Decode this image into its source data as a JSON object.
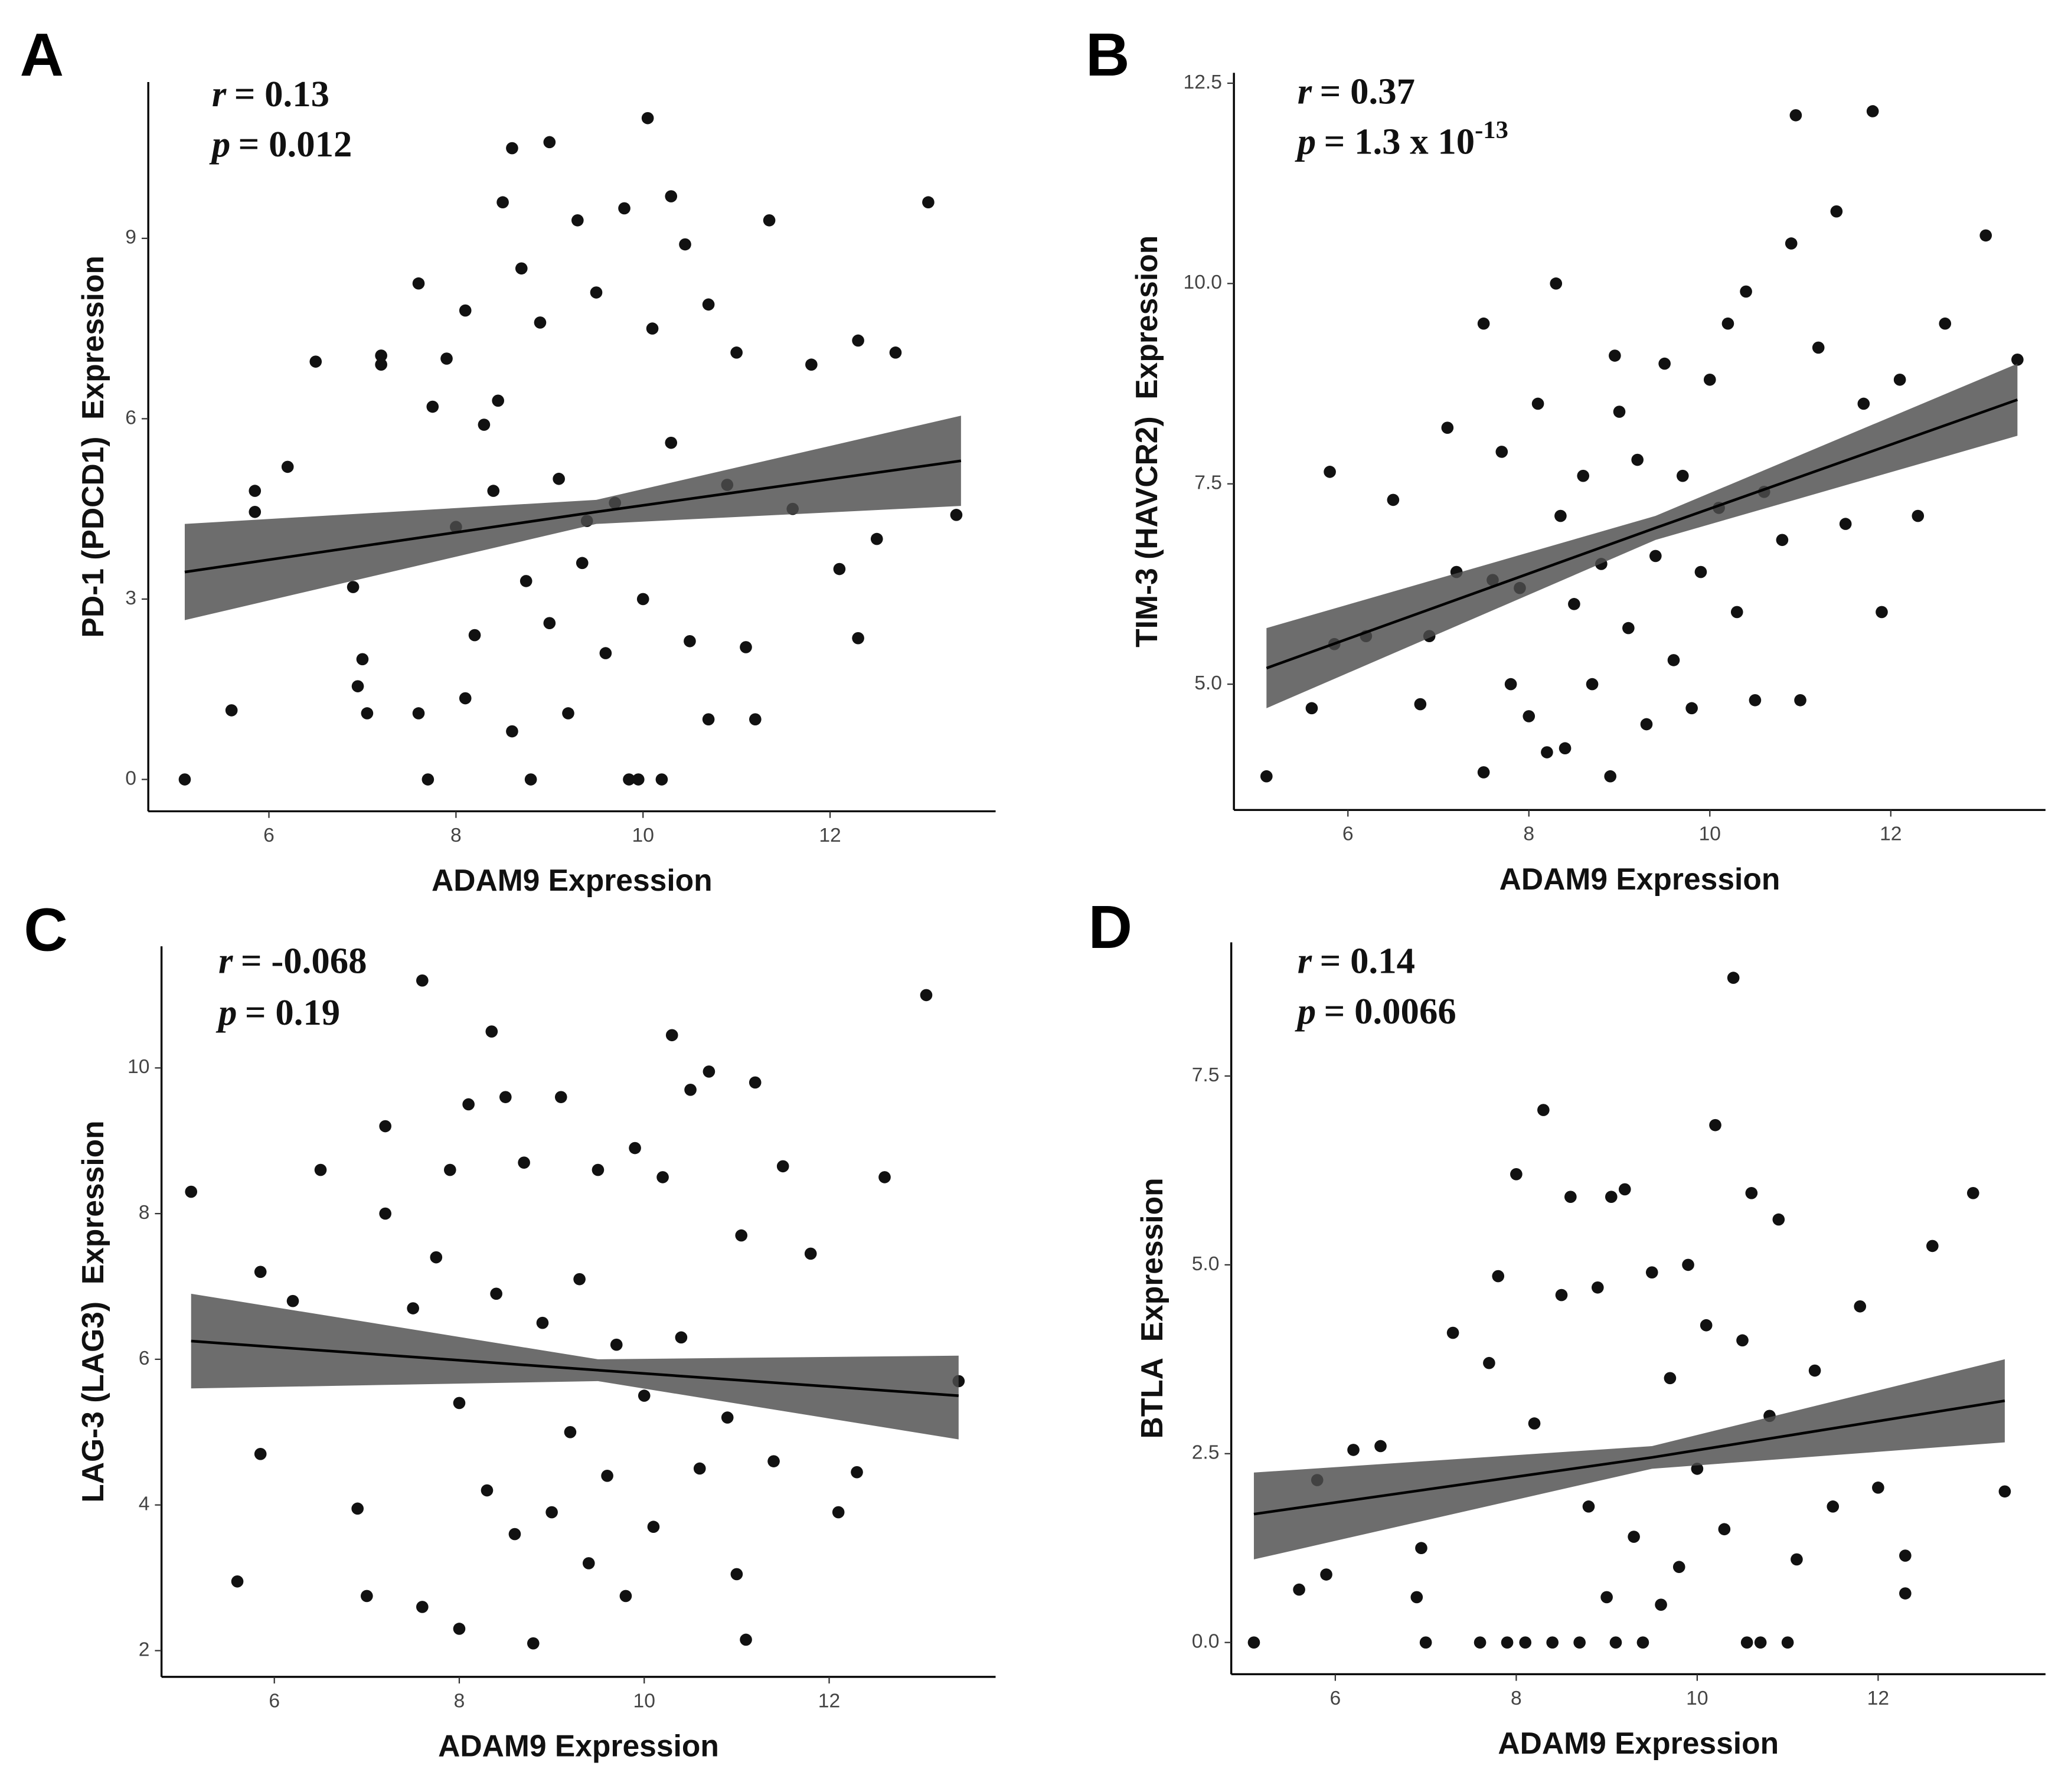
{
  "chart_data": [
    {
      "panel": "A",
      "type": "scatter",
      "color": "#111111",
      "xlabel": "ADAM9 Expression",
      "ylabel": "PD-1 (PDCD1)  Expression",
      "annotations": [
        {
          "symbol": "r",
          "text": "= 0.13"
        },
        {
          "symbol": "p",
          "text": "= 0.012"
        }
      ],
      "xlim": [
        4.71,
        13.77
      ],
      "ylim": [
        -0.53,
        11.6
      ],
      "xticks": [
        6,
        8,
        10,
        12
      ],
      "yticks": [
        0,
        3,
        6,
        9
      ],
      "x": [
        5.1,
        5.6,
        5.85,
        5.85,
        6.2,
        6.5,
        6.9,
        6.95,
        7.0,
        7.05,
        7.2,
        7.2,
        7.6,
        7.6,
        7.7,
        7.75,
        7.9,
        8.0,
        8.1,
        8.1,
        8.2,
        8.3,
        8.4,
        8.45,
        8.5,
        8.6,
        8.6,
        8.7,
        8.75,
        8.8,
        8.9,
        9.0,
        9.0,
        9.1,
        9.2,
        9.3,
        9.35,
        9.4,
        9.5,
        9.6,
        9.7,
        9.8,
        9.85,
        9.95,
        10.0,
        10.05,
        10.1,
        10.2,
        10.3,
        10.3,
        10.45,
        10.5,
        10.7,
        10.7,
        10.9,
        11.0,
        11.1,
        11.2,
        11.35,
        11.6,
        11.8,
        12.1,
        12.3,
        12.3,
        12.5,
        12.7,
        13.05,
        13.35
      ],
      "values": [
        0,
        1.15,
        4.8,
        4.45,
        5.2,
        6.95,
        3.2,
        1.55,
        2.0,
        1.1,
        7.05,
        6.9,
        8.25,
        1.1,
        0,
        6.2,
        7.0,
        4.2,
        1.35,
        7.8,
        2.4,
        5.9,
        4.8,
        6.3,
        9.6,
        10.5,
        0.8,
        8.5,
        3.3,
        0,
        7.6,
        2.6,
        10.6,
        5.0,
        1.1,
        9.3,
        3.6,
        4.3,
        8.1,
        2.1,
        4.6,
        9.5,
        0,
        0,
        3.0,
        11.0,
        7.5,
        0,
        9.7,
        5.6,
        8.9,
        2.3,
        7.9,
        1.0,
        4.9,
        7.1,
        2.2,
        1.0,
        9.3,
        4.5,
        6.9,
        3.5,
        7.3,
        2.35,
        4.0,
        7.1,
        9.6,
        4.4
      ],
      "fit": {
        "x": [
          5.1,
          9.5,
          13.4
        ],
        "y": [
          3.45,
          4.45,
          5.3
        ],
        "lower": [
          2.65,
          4.25,
          4.55
        ],
        "upper": [
          4.25,
          4.65,
          6.05
        ]
      }
    },
    {
      "panel": "B",
      "type": "scatter",
      "color": "#111111",
      "xlabel": "ADAM9 Expression",
      "ylabel": "TIM-3 (HAVCR2)  Expression",
      "annotations": [
        {
          "symbol": "r",
          "text": "= 0.37"
        },
        {
          "symbol": "p",
          "text": "= 1.3 x 10",
          "sup": "-13"
        }
      ],
      "xlim": [
        4.74,
        13.71
      ],
      "ylim": [
        3.43,
        12.63
      ],
      "xticks": [
        6,
        8,
        10,
        12
      ],
      "yticks": [
        {
          "value": 5,
          "label": "5.0"
        },
        {
          "value": 7.5,
          "label": "7.5"
        },
        {
          "value": 10,
          "label": "10.0"
        },
        {
          "value": 12.5,
          "label": "12.5"
        }
      ],
      "x": [
        5.1,
        5.6,
        5.8,
        5.85,
        6.2,
        6.5,
        6.8,
        6.9,
        7.1,
        7.2,
        7.5,
        7.5,
        7.6,
        7.7,
        7.8,
        7.9,
        8.0,
        8.1,
        8.2,
        8.3,
        8.35,
        8.4,
        8.5,
        8.6,
        8.7,
        8.8,
        8.9,
        8.95,
        9.0,
        9.1,
        9.2,
        9.3,
        9.4,
        9.5,
        9.6,
        9.7,
        9.8,
        9.9,
        10.0,
        10.1,
        10.2,
        10.3,
        10.4,
        10.5,
        10.6,
        10.8,
        10.9,
        10.95,
        11.0,
        11.2,
        11.4,
        11.5,
        11.7,
        11.8,
        11.9,
        12.1,
        12.3,
        12.6,
        13.05,
        13.4
      ],
      "values": [
        3.85,
        4.7,
        7.65,
        5.5,
        5.6,
        7.3,
        4.75,
        5.6,
        8.2,
        6.4,
        9.5,
        3.9,
        6.3,
        7.9,
        5.0,
        6.2,
        4.6,
        8.5,
        4.15,
        10.0,
        7.1,
        4.2,
        6.0,
        7.6,
        5.0,
        6.5,
        3.85,
        9.1,
        8.4,
        5.7,
        7.8,
        4.5,
        6.6,
        9.0,
        5.3,
        7.6,
        4.7,
        6.4,
        8.8,
        7.2,
        9.5,
        5.9,
        9.9,
        4.8,
        7.4,
        6.8,
        10.5,
        12.1,
        4.8,
        9.2,
        10.9,
        7.0,
        8.5,
        12.15,
        5.9,
        8.8,
        7.1,
        9.5,
        10.6,
        9.05
      ],
      "fit": {
        "x": [
          5.1,
          9.4,
          13.4
        ],
        "y": [
          5.2,
          6.95,
          8.55
        ],
        "lower": [
          4.7,
          6.8,
          8.1
        ],
        "upper": [
          5.7,
          7.1,
          9.0
        ]
      }
    },
    {
      "panel": "C",
      "type": "scatter",
      "color": "#111111",
      "xlabel": "ADAM9 Expression",
      "ylabel": "LAG-3 (LAG3)  Expression",
      "annotations": [
        {
          "symbol": "r",
          "text": "= -0.068"
        },
        {
          "symbol": "p",
          "text": "= 0.19"
        }
      ],
      "xlim": [
        4.78,
        13.8
      ],
      "ylim": [
        1.64,
        11.67
      ],
      "xticks": [
        6,
        8,
        10,
        12
      ],
      "yticks": [
        2,
        4,
        6,
        8,
        10
      ],
      "x": [
        5.1,
        5.6,
        5.85,
        5.85,
        6.2,
        6.5,
        6.9,
        7.0,
        7.2,
        7.2,
        7.5,
        7.6,
        7.6,
        7.75,
        7.9,
        8.0,
        8.0,
        8.1,
        8.3,
        8.35,
        8.4,
        8.5,
        8.6,
        8.7,
        8.8,
        8.9,
        9.0,
        9.1,
        9.2,
        9.3,
        9.4,
        9.5,
        9.6,
        9.7,
        9.8,
        9.9,
        10.0,
        10.1,
        10.2,
        10.3,
        10.4,
        10.5,
        10.6,
        10.7,
        10.9,
        11.0,
        11.05,
        11.1,
        11.2,
        11.4,
        11.5,
        11.8,
        12.1,
        12.3,
        12.6,
        13.05,
        13.4
      ],
      "values": [
        8.3,
        2.95,
        7.2,
        4.7,
        6.8,
        8.6,
        3.95,
        2.75,
        9.2,
        8.0,
        6.7,
        11.2,
        2.6,
        7.4,
        8.6,
        5.4,
        2.3,
        9.5,
        4.2,
        10.5,
        6.9,
        9.6,
        3.6,
        8.7,
        2.1,
        6.5,
        3.9,
        9.6,
        5.0,
        7.1,
        3.2,
        8.6,
        4.4,
        6.2,
        2.75,
        8.9,
        5.5,
        3.7,
        8.5,
        10.45,
        6.3,
        9.7,
        4.5,
        9.95,
        5.2,
        3.05,
        7.7,
        2.15,
        9.8,
        4.6,
        8.65,
        7.45,
        3.9,
        4.45,
        8.5,
        11.0,
        5.7
      ],
      "fit": {
        "x": [
          5.1,
          9.5,
          13.4
        ],
        "y": [
          6.25,
          5.85,
          5.5
        ],
        "lower": [
          5.6,
          5.7,
          4.9
        ],
        "upper": [
          6.9,
          6.0,
          6.05
        ]
      }
    },
    {
      "panel": "D",
      "type": "scatter",
      "color": "#111111",
      "xlabel": "ADAM9 Expression",
      "ylabel": "BTLA  Expression",
      "annotations": [
        {
          "symbol": "r",
          "text": "= 0.14"
        },
        {
          "symbol": "p",
          "text": "= 0.0066"
        }
      ],
      "xlim": [
        4.85,
        13.85
      ],
      "ylim": [
        -0.42,
        9.27
      ],
      "xticks": [
        6,
        8,
        10,
        12
      ],
      "yticks": [
        {
          "value": 0,
          "label": "0.0"
        },
        {
          "value": 2.5,
          "label": "2.5"
        },
        {
          "value": 5,
          "label": "5.0"
        },
        {
          "value": 7.5,
          "label": "7.5"
        }
      ],
      "x": [
        5.1,
        5.6,
        5.8,
        5.9,
        6.2,
        6.5,
        6.9,
        6.95,
        7.0,
        7.3,
        7.6,
        7.7,
        7.8,
        7.9,
        8.0,
        8.1,
        8.2,
        8.3,
        8.4,
        8.5,
        8.6,
        8.7,
        8.8,
        8.9,
        9.0,
        9.05,
        9.1,
        9.2,
        9.3,
        9.4,
        9.5,
        9.6,
        9.7,
        9.8,
        9.9,
        10.0,
        10.1,
        10.2,
        10.3,
        10.4,
        10.5,
        10.55,
        10.6,
        10.7,
        10.8,
        10.9,
        11.0,
        11.1,
        11.3,
        11.5,
        11.8,
        12.0,
        12.3,
        12.3,
        12.6,
        13.05,
        13.4
      ],
      "values": [
        0,
        0.7,
        2.15,
        0.9,
        2.55,
        2.6,
        0.6,
        1.25,
        0,
        4.1,
        0,
        3.7,
        4.85,
        0,
        6.2,
        0,
        2.9,
        7.05,
        0,
        4.6,
        5.9,
        0,
        1.8,
        4.7,
        0.6,
        5.9,
        0,
        6.0,
        1.4,
        0,
        4.9,
        0.5,
        3.5,
        1.0,
        5.0,
        2.3,
        4.2,
        6.85,
        1.5,
        8.8,
        4.0,
        0,
        5.95,
        0,
        3.0,
        5.6,
        0,
        1.1,
        3.6,
        1.8,
        4.45,
        2.05,
        1.15,
        0.65,
        5.25,
        5.95,
        2.0
      ],
      "fit": {
        "x": [
          5.1,
          9.5,
          13.4
        ],
        "y": [
          1.7,
          2.45,
          3.2
        ],
        "lower": [
          1.1,
          2.3,
          2.65
        ],
        "upper": [
          2.25,
          2.6,
          3.75
        ]
      }
    }
  ]
}
